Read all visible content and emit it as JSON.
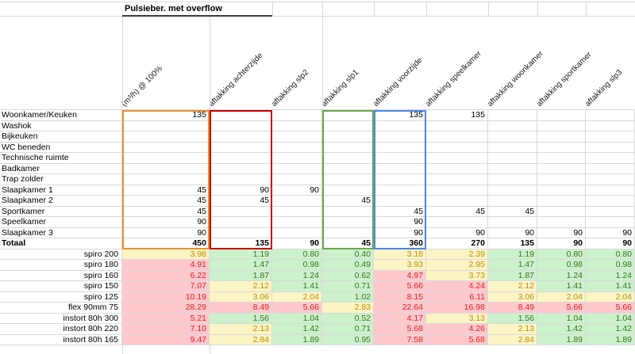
{
  "title": "Pulsieber. met overflow",
  "columns": [
    {
      "key": "m3h",
      "label": "(m³/h) @ 100%"
    },
    {
      "key": "achterzijde",
      "label": "aftakking achterzijde"
    },
    {
      "key": "slp2",
      "label": "aftakking slp2"
    },
    {
      "key": "slp1",
      "label": "aftakking slp1"
    },
    {
      "key": "voorzijde",
      "label": "aftakking voorzijde"
    },
    {
      "key": "speelkamer",
      "label": "aftakking speelkamer"
    },
    {
      "key": "woonkamer",
      "label": "aftakking woonkamer"
    },
    {
      "key": "sportkamer",
      "label": "aftakking sportkamer"
    },
    {
      "key": "slp3",
      "label": "aftakking slp3"
    }
  ],
  "room_rows": [
    {
      "label": "Woonkamer/Keuken",
      "values": [
        "135",
        "",
        "",
        "",
        "135",
        "135",
        "",
        "",
        ""
      ]
    },
    {
      "label": "Washok",
      "values": [
        "",
        "",
        "",
        "",
        "",
        "",
        "",
        "",
        ""
      ]
    },
    {
      "label": "Bijkeuken",
      "values": [
        "",
        "",
        "",
        "",
        "",
        "",
        "",
        "",
        ""
      ]
    },
    {
      "label": "WC beneden",
      "values": [
        "",
        "",
        "",
        "",
        "",
        "",
        "",
        "",
        ""
      ]
    },
    {
      "label": "Technische ruimte",
      "values": [
        "",
        "",
        "",
        "",
        "",
        "",
        "",
        "",
        ""
      ]
    },
    {
      "label": "Badkamer",
      "values": [
        "",
        "",
        "",
        "",
        "",
        "",
        "",
        "",
        ""
      ]
    },
    {
      "label": "Trap zolder",
      "values": [
        "",
        "",
        "",
        "",
        "",
        "",
        "",
        "",
        ""
      ]
    },
    {
      "label": "Slaapkamer 1",
      "values": [
        "45",
        "90",
        "90",
        "",
        "",
        "",
        "",
        "",
        ""
      ]
    },
    {
      "label": "Slaapkamer 2",
      "values": [
        "45",
        "45",
        "",
        "45",
        "",
        "",
        "",
        "",
        ""
      ]
    },
    {
      "label": "Sportkamer",
      "values": [
        "45",
        "",
        "",
        "",
        "45",
        "45",
        "45",
        "",
        ""
      ]
    },
    {
      "label": "Speelkamer",
      "values": [
        "90",
        "",
        "",
        "",
        "90",
        "",
        "",
        "",
        ""
      ]
    },
    {
      "label": "Slaapkamer 3",
      "values": [
        "90",
        "",
        "",
        "",
        "90",
        "90",
        "90",
        "90",
        "90"
      ]
    }
  ],
  "total_row": {
    "label": "Totaal",
    "values": [
      "450",
      "135",
      "90",
      "45",
      "360",
      "270",
      "135",
      "90",
      "90"
    ]
  },
  "duct_rows": [
    {
      "label": "spiro 200",
      "values": [
        "3.98",
        "1.19",
        "0.80",
        "0.40",
        "3.18",
        "2.39",
        "1.19",
        "0.80",
        "0.80"
      ],
      "status": [
        "warn",
        "ok",
        "ok",
        "ok",
        "warn",
        "warn",
        "ok",
        "ok",
        "ok"
      ]
    },
    {
      "label": "spiro 180",
      "values": [
        "4.91",
        "1.47",
        "0.98",
        "0.49",
        "3.93",
        "2.95",
        "1.47",
        "0.98",
        "0.98"
      ],
      "status": [
        "bad",
        "ok",
        "ok",
        "ok",
        "warn",
        "warn",
        "ok",
        "ok",
        "ok"
      ]
    },
    {
      "label": "spiro 160",
      "values": [
        "6.22",
        "1.87",
        "1.24",
        "0.62",
        "4.97",
        "3.73",
        "1.87",
        "1.24",
        "1.24"
      ],
      "status": [
        "bad",
        "ok",
        "ok",
        "ok",
        "bad",
        "warn",
        "ok",
        "ok",
        "ok"
      ]
    },
    {
      "label": "spiro 150",
      "values": [
        "7.07",
        "2.12",
        "1.41",
        "0.71",
        "5.66",
        "4.24",
        "2.12",
        "1.41",
        "1.41"
      ],
      "status": [
        "bad",
        "warn",
        "ok",
        "ok",
        "bad",
        "bad",
        "warn",
        "ok",
        "ok"
      ]
    },
    {
      "label": "spiro 125",
      "values": [
        "10.19",
        "3.06",
        "2.04",
        "1.02",
        "8.15",
        "6.11",
        "3.06",
        "2.04",
        "2.04"
      ],
      "status": [
        "bad",
        "warn",
        "warn",
        "ok",
        "bad",
        "bad",
        "warn",
        "warn",
        "warn"
      ]
    },
    {
      "label": "flex 90mm 75",
      "values": [
        "28.29",
        "8.49",
        "5.66",
        "2.83",
        "22.64",
        "16.98",
        "8.49",
        "5.66",
        "5.66"
      ],
      "status": [
        "bad",
        "bad",
        "bad",
        "warn",
        "bad",
        "bad",
        "bad",
        "bad",
        "bad"
      ]
    },
    {
      "label": "instort 80h 300",
      "values": [
        "5.21",
        "1.56",
        "1.04",
        "0.52",
        "4.17",
        "3.13",
        "1.56",
        "1.04",
        "1.04"
      ],
      "status": [
        "bad",
        "ok",
        "ok",
        "ok",
        "bad",
        "warn",
        "ok",
        "ok",
        "ok"
      ]
    },
    {
      "label": "instort 80h 220",
      "values": [
        "7.10",
        "2.13",
        "1.42",
        "0.71",
        "5.68",
        "4.26",
        "2.13",
        "1.42",
        "1.42"
      ],
      "status": [
        "bad",
        "warn",
        "ok",
        "ok",
        "bad",
        "bad",
        "warn",
        "ok",
        "ok"
      ]
    },
    {
      "label": "instort 80h 165",
      "values": [
        "9.47",
        "2.84",
        "1.89",
        "0.95",
        "7.58",
        "5.68",
        "2.84",
        "1.89",
        "1.89"
      ],
      "status": [
        "bad",
        "warn",
        "ok",
        "ok",
        "bad",
        "bad",
        "warn",
        "ok",
        "ok"
      ]
    }
  ],
  "legend_colors": {
    "ok_fill": "#ccf1cd",
    "ok_text": "#38761d",
    "warn_fill": "#fbf4c5",
    "warn_text": "#bf8f00",
    "bad_fill": "#ffc8cd",
    "bad_text": "#e02222"
  },
  "column_boxes": [
    {
      "column_key": "m3h",
      "color": "#e69138"
    },
    {
      "column_key": "achterzijde",
      "color": "#cc0000"
    },
    {
      "column_key": "slp1",
      "color": "#6aa84f"
    },
    {
      "column_key": "voorzijde",
      "color": "#4a86e8"
    }
  ]
}
